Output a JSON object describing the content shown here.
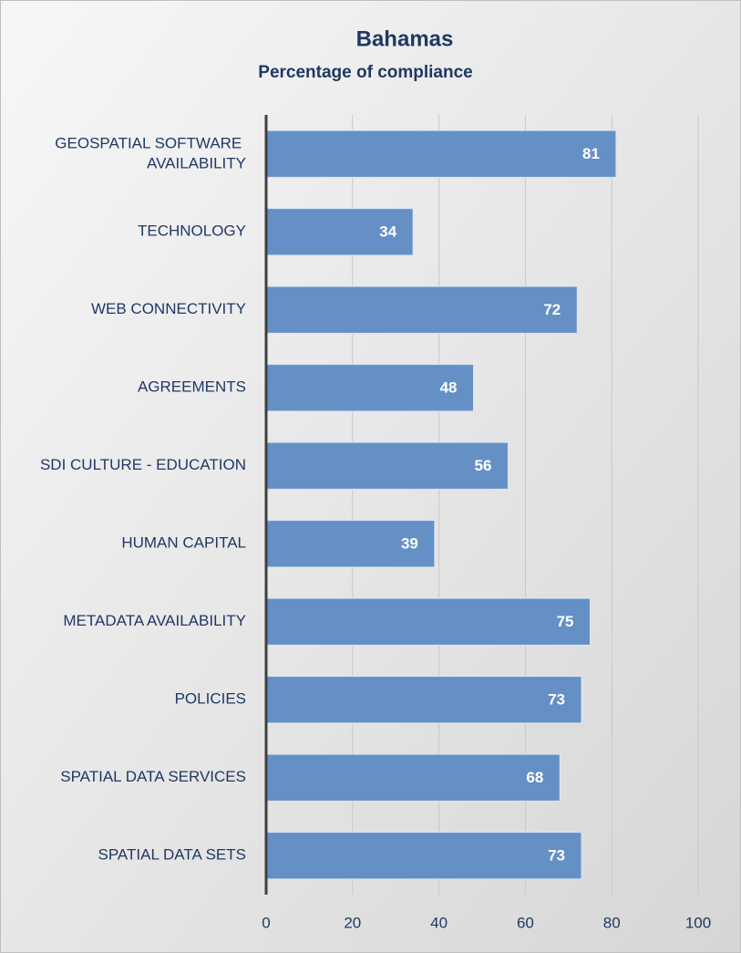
{
  "chart_data": {
    "type": "bar",
    "orientation": "horizontal",
    "title": "Bahamas",
    "subtitle": "Percentage of compliance",
    "categories": [
      "GEOSPATIAL SOFTWARE AVAILABILITY",
      "TECHNOLOGY",
      "WEB CONNECTIVITY",
      "AGREEMENTS",
      "SDI CULTURE - EDUCATION",
      "HUMAN CAPITAL",
      "METADATA AVAILABILITY",
      "POLICIES",
      "SPATIAL DATA SERVICES",
      "SPATIAL DATA SETS"
    ],
    "values": [
      81,
      34,
      72,
      48,
      56,
      39,
      75,
      73,
      68,
      73
    ],
    "color": "#6590c6",
    "xlim": [
      0,
      100
    ],
    "xticks": [
      0,
      20,
      40,
      60,
      80,
      100
    ],
    "grid": true
  }
}
